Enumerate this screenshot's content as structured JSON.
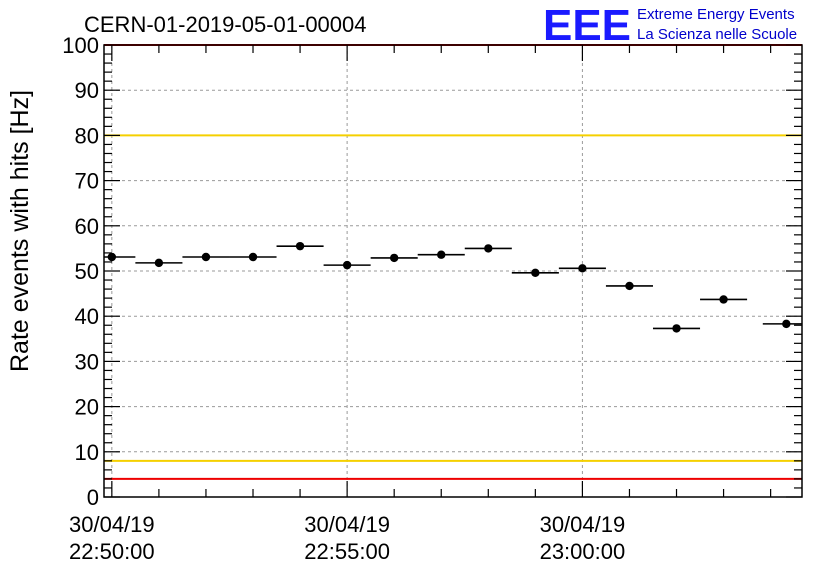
{
  "logo": {
    "text": "EEE",
    "line1": "Extreme Energy Events",
    "line2": "La Scienza nelle Scuole",
    "color": "#1a1aff"
  },
  "chart_data": {
    "type": "scatter",
    "title": "CERN-01-2019-05-01-00004",
    "xlabel": "",
    "ylabel": "Rate events with hits [Hz]",
    "ylim": [
      0,
      100
    ],
    "yticks": [
      0,
      10,
      20,
      30,
      40,
      50,
      60,
      70,
      80,
      90,
      100
    ],
    "xlim": [
      "30/04/19 22:49:50",
      "30/04/19 23:04:40"
    ],
    "x_tick_labels": [
      {
        "date": "30/04/19",
        "time": "22:50:00"
      },
      {
        "date": "30/04/19",
        "time": "22:55:00"
      },
      {
        "date": "30/04/19",
        "time": "23:00:00"
      }
    ],
    "grid": true,
    "bin_width_s": 60,
    "series": [
      {
        "x": [
          "22:50:00",
          "22:51:00",
          "22:52:00",
          "22:53:00",
          "22:54:00",
          "22:55:00",
          "22:56:00",
          "22:57:00",
          "22:58:00",
          "22:59:00",
          "23:00:00",
          "23:01:00",
          "23:02:00",
          "23:03:00",
          "23:04:20"
        ],
        "y": [
          53.1,
          51.8,
          53.1,
          53.1,
          55.5,
          51.3,
          52.9,
          53.6,
          55.0,
          49.6,
          50.6,
          46.7,
          37.3,
          43.7,
          38.3
        ],
        "color": "#000000"
      }
    ],
    "reference_lines": [
      {
        "y": 80,
        "color": "#f5d000"
      },
      {
        "y": 8,
        "color": "#f5d000"
      },
      {
        "y": 4,
        "color": "#ee0000"
      },
      {
        "y": 100,
        "color": "#ee0000"
      }
    ]
  }
}
